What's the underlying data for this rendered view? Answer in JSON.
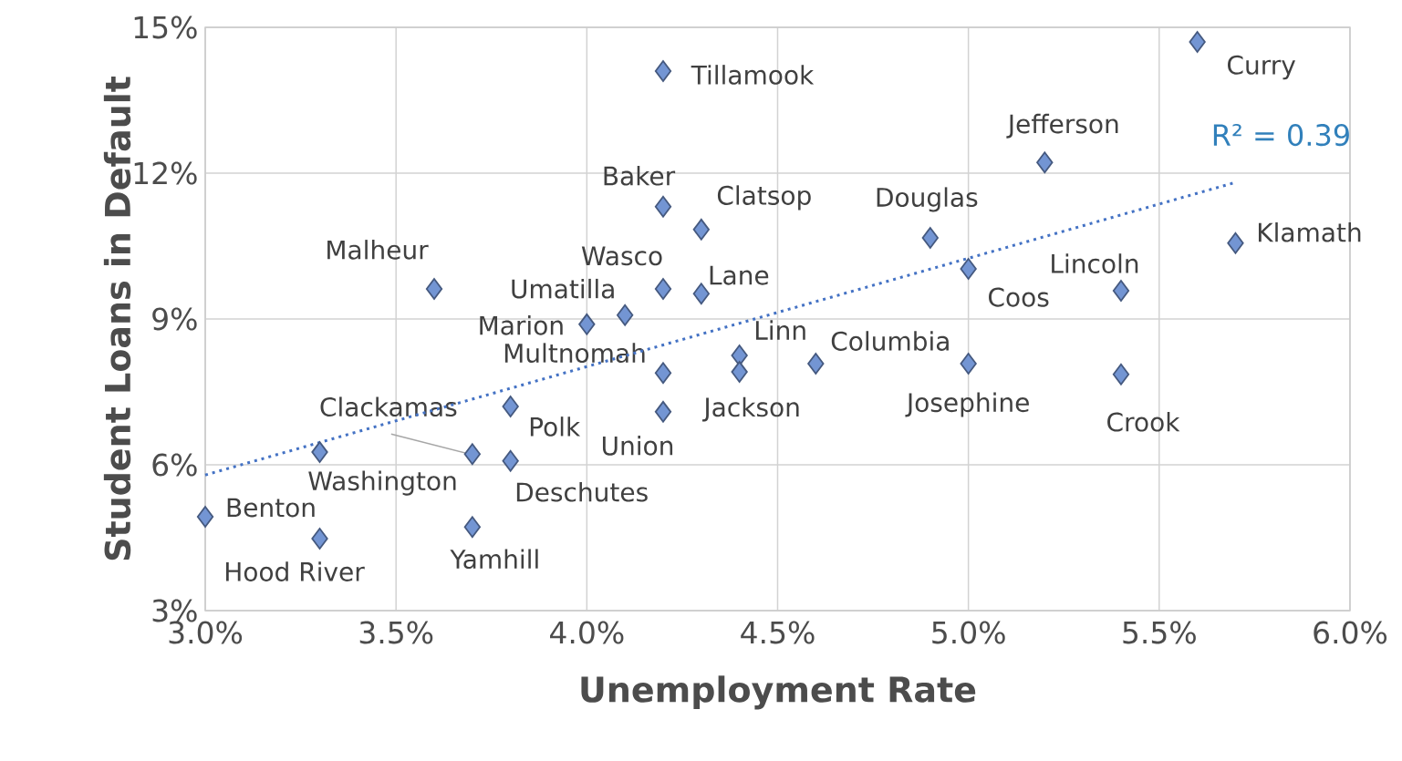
{
  "chart_data": {
    "type": "scatter",
    "xlabel": "Unemployment Rate",
    "ylabel": "Student Loans in Default",
    "xlim": [
      3.0,
      6.0
    ],
    "ylim": [
      3,
      15
    ],
    "xticks": [
      {
        "value": 3.0,
        "label": "3.0%"
      },
      {
        "value": 3.5,
        "label": "3.5%"
      },
      {
        "value": 4.0,
        "label": "4.0%"
      },
      {
        "value": 4.5,
        "label": "4.5%"
      },
      {
        "value": 5.0,
        "label": "5.0%"
      },
      {
        "value": 5.5,
        "label": "5.5%"
      },
      {
        "value": 6.0,
        "label": "6.0%"
      }
    ],
    "yticks": [
      {
        "value": 3,
        "label": "3%"
      },
      {
        "value": 6,
        "label": "6%"
      },
      {
        "value": 9,
        "label": "9%"
      },
      {
        "value": 12,
        "label": "12%"
      },
      {
        "value": 15,
        "label": "15%"
      }
    ],
    "grid": true,
    "annotations": [
      "R² = 0.39"
    ],
    "series": [
      {
        "color": "#7395d3",
        "marker": "diamond",
        "x": [
          3.0,
          3.3,
          3.3,
          3.7,
          3.7,
          3.8,
          3.8,
          3.6,
          4.0,
          4.1,
          4.2,
          4.2,
          4.2,
          4.2,
          4.2,
          4.3,
          4.3,
          4.4,
          4.4,
          4.6,
          4.9,
          5.0,
          5.0,
          5.2,
          5.4,
          5.4,
          5.6,
          5.7
        ],
        "values": [
          4.93,
          4.48,
          6.26,
          4.72,
          6.22,
          6.08,
          7.2,
          9.62,
          8.89,
          9.08,
          7.89,
          7.09,
          9.62,
          11.31,
          14.1,
          9.52,
          10.84,
          8.25,
          7.91,
          8.08,
          10.67,
          10.03,
          8.08,
          12.22,
          9.58,
          7.86,
          14.7,
          10.56
        ],
        "value_labels": [
          "Benton",
          "Hood River",
          "Washington",
          "Yamhill",
          "Clackamas",
          "Deschutes",
          "Polk",
          "Malheur",
          "Marion",
          "Umatilla",
          "Multnomah",
          "Union",
          "Wasco",
          "Baker",
          "Tillamook",
          "Lane",
          "Clatsop",
          "Linn",
          "Jackson",
          "Columbia",
          "Douglas",
          "Coos",
          "Josephine",
          "Jefferson",
          "Lincoln",
          "Crook",
          "Curry",
          "Klamath"
        ]
      },
      {
        "type": "line",
        "color": "#4472c4",
        "line_style": "dotted",
        "marker": "none",
        "x": [
          3.0,
          5.7
        ],
        "values": [
          5.79,
          11.81
        ]
      }
    ]
  }
}
